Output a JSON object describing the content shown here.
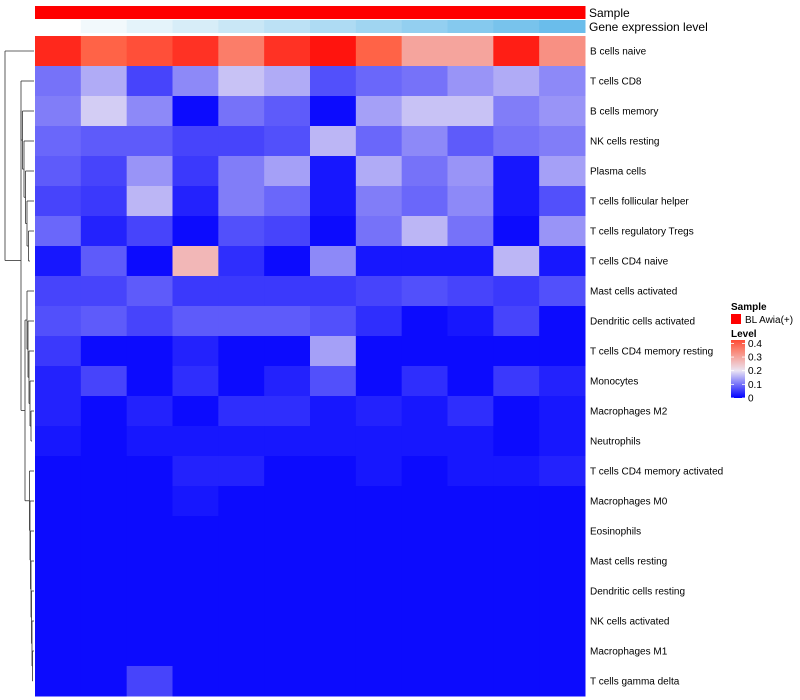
{
  "chart_data": {
    "type": "heatmap",
    "title": "",
    "annotation_tracks": [
      {
        "label": "Sample",
        "colors": [
          "#ff0000",
          "#ff0000",
          "#ff0000",
          "#ff0000",
          "#ff0000",
          "#ff0000",
          "#ff0000",
          "#ff0000",
          "#ff0000",
          "#ff0000",
          "#ff0000",
          "#ff0000"
        ]
      },
      {
        "label": "Gene expression level",
        "colors": [
          "#ffffff",
          "#f2f9fc",
          "#e4f3fa",
          "#d7edf8",
          "#c9e7f6",
          "#bce1f5",
          "#aedbf3",
          "#a0d5f1",
          "#93cff0",
          "#85c9ee",
          "#78c3ec",
          "#6abdeb"
        ]
      }
    ],
    "rows": [
      "B cells naive",
      "T cells CD8",
      "B cells memory",
      "NK cells resting",
      "Plasma cells",
      "T cells follicular helper",
      "T cells regulatory  Tregs",
      "T cells CD4 naive",
      "Mast cells activated",
      "Dendritic cells activated",
      "T cells CD4 memory resting",
      "Monocytes",
      "Macrophages M2",
      "Neutrophils",
      "T cells CD4 memory activated",
      "Macrophages M0",
      "Eosinophils",
      "Mast cells resting",
      "Dendritic cells resting",
      "NK cells activated",
      "Macrophages M1",
      "T cells gamma delta"
    ],
    "n_columns": 12,
    "values": [
      [
        0.46,
        0.4,
        0.42,
        0.45,
        0.36,
        0.45,
        0.48,
        0.4,
        0.3,
        0.3,
        0.47,
        0.33
      ],
      [
        0.1,
        0.15,
        0.06,
        0.12,
        0.17,
        0.15,
        0.07,
        0.09,
        0.1,
        0.13,
        0.15,
        0.12
      ],
      [
        0.11,
        0.18,
        0.12,
        0.01,
        0.1,
        0.08,
        0.01,
        0.14,
        0.17,
        0.17,
        0.11,
        0.13
      ],
      [
        0.09,
        0.08,
        0.08,
        0.06,
        0.06,
        0.07,
        0.16,
        0.09,
        0.12,
        0.08,
        0.1,
        0.11
      ],
      [
        0.08,
        0.06,
        0.13,
        0.05,
        0.11,
        0.14,
        0.02,
        0.15,
        0.1,
        0.13,
        0.02,
        0.14
      ],
      [
        0.06,
        0.05,
        0.16,
        0.03,
        0.11,
        0.09,
        0.02,
        0.11,
        0.09,
        0.12,
        0.02,
        0.07
      ],
      [
        0.09,
        0.03,
        0.06,
        0.01,
        0.07,
        0.06,
        0.01,
        0.1,
        0.16,
        0.1,
        0.01,
        0.13
      ],
      [
        0.02,
        0.08,
        0.01,
        0.27,
        0.04,
        0.01,
        0.12,
        0.02,
        0.02,
        0.02,
        0.16,
        0.02
      ],
      [
        0.06,
        0.06,
        0.08,
        0.05,
        0.05,
        0.05,
        0.05,
        0.06,
        0.07,
        0.06,
        0.05,
        0.07
      ],
      [
        0.07,
        0.08,
        0.06,
        0.08,
        0.08,
        0.08,
        0.07,
        0.04,
        0.01,
        0.02,
        0.06,
        0.01
      ],
      [
        0.05,
        0.01,
        0.01,
        0.03,
        0.01,
        0.01,
        0.14,
        0.01,
        0.01,
        0.01,
        0.01,
        0.01
      ],
      [
        0.03,
        0.06,
        0.01,
        0.04,
        0.01,
        0.03,
        0.07,
        0.01,
        0.04,
        0.01,
        0.05,
        0.03
      ],
      [
        0.03,
        0.01,
        0.03,
        0.01,
        0.04,
        0.04,
        0.02,
        0.03,
        0.02,
        0.04,
        0.01,
        0.02
      ],
      [
        0.02,
        0.01,
        0.02,
        0.02,
        0.02,
        0.02,
        0.02,
        0.02,
        0.02,
        0.02,
        0.01,
        0.02
      ],
      [
        0.01,
        0.01,
        0.01,
        0.03,
        0.03,
        0.01,
        0.01,
        0.02,
        0.01,
        0.02,
        0.02,
        0.03
      ],
      [
        0.01,
        0.01,
        0.01,
        0.02,
        0.01,
        0.01,
        0.01,
        0.01,
        0.01,
        0.01,
        0.01,
        0.01
      ],
      [
        0.01,
        0.01,
        0.01,
        0.01,
        0.01,
        0.01,
        0.01,
        0.01,
        0.01,
        0.01,
        0.01,
        0.01
      ],
      [
        0.01,
        0.01,
        0.01,
        0.01,
        0.01,
        0.01,
        0.01,
        0.01,
        0.01,
        0.01,
        0.01,
        0.01
      ],
      [
        0.01,
        0.01,
        0.01,
        0.01,
        0.01,
        0.01,
        0.01,
        0.01,
        0.01,
        0.01,
        0.01,
        0.01
      ],
      [
        0.01,
        0.01,
        0.01,
        0.01,
        0.01,
        0.01,
        0.01,
        0.01,
        0.01,
        0.01,
        0.01,
        0.01
      ],
      [
        0.01,
        0.01,
        0.01,
        0.01,
        0.01,
        0.01,
        0.01,
        0.01,
        0.01,
        0.01,
        0.01,
        0.01
      ],
      [
        0.01,
        0.01,
        0.06,
        0.01,
        0.01,
        0.01,
        0.01,
        0.01,
        0.01,
        0.01,
        0.01,
        0.01
      ]
    ],
    "color_scale": {
      "stops": [
        {
          "value": 0.0,
          "color": "#0000ff"
        },
        {
          "value": 0.2,
          "color": "#ebe4f3"
        },
        {
          "value": 0.4,
          "color": "#ff6347"
        },
        {
          "value": 0.5,
          "color": "#ff0000"
        }
      ]
    },
    "legend": {
      "sample_title": "Sample",
      "sample_entries": [
        {
          "label": "BL Awia(+)",
          "color": "#ff0000"
        }
      ],
      "level_title": "Level",
      "level_ticks": [
        "0.4",
        "0.3",
        "0.2",
        "0.1",
        "0"
      ],
      "level_tick_values": [
        0.4,
        0.3,
        0.2,
        0.1,
        0.0
      ]
    }
  }
}
